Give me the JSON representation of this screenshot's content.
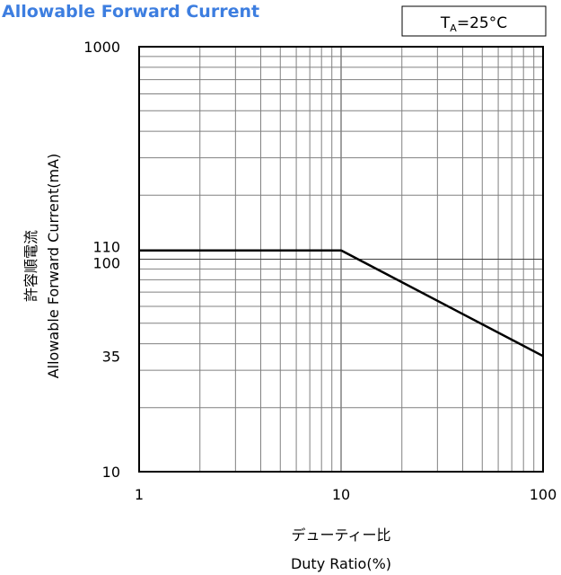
{
  "chart_data": {
    "type": "line",
    "title": "Allowable Forward Current",
    "condition": {
      "symbol": "T",
      "subscript": "A",
      "value": "=25°C"
    },
    "xlabel": "Duty Ratio(%)",
    "xlabel_jp": "デューティー比",
    "ylabel": "Allowable Forward Current(mA)",
    "ylabel_jp": "許容順電流",
    "xscale": "log",
    "yscale": "log",
    "xlim": [
      1,
      100
    ],
    "ylim": [
      10,
      1000
    ],
    "x_ticks": [
      "1",
      "10",
      "100"
    ],
    "y_ticks": [
      "10",
      "35",
      "100",
      "110",
      "1000"
    ],
    "grid": true,
    "series": [
      {
        "x": [
          1,
          10,
          100
        ],
        "y": [
          110,
          110,
          35
        ],
        "color": "#000000"
      }
    ]
  }
}
